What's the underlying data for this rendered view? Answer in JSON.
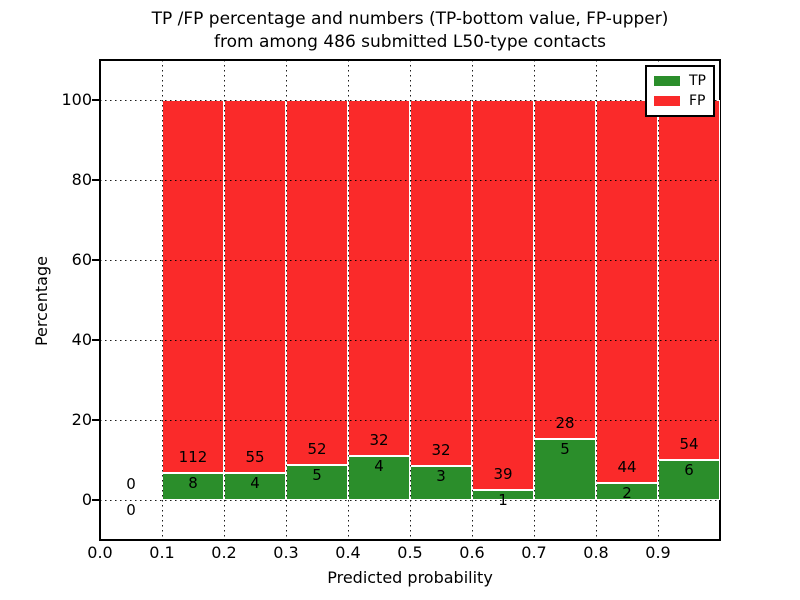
{
  "title": {
    "line1": "TP /FP percentage and numbers (TP-bottom value, FP-upper)",
    "line2": "from among 486 submitted L50-type contacts"
  },
  "axes": {
    "xlabel": "Predicted probability",
    "ylabel": "Percentage",
    "ytick_values": [
      0,
      20,
      40,
      60,
      80,
      100
    ],
    "ytick_labels": [
      "0",
      "20",
      "40",
      "60",
      "80",
      "100"
    ],
    "xtick_values": [
      0.0,
      0.1,
      0.2,
      0.3,
      0.4,
      0.5,
      0.6,
      0.7,
      0.8,
      0.9
    ],
    "xtick_labels": [
      "0.0",
      "0.1",
      "0.2",
      "0.3",
      "0.4",
      "0.5",
      "0.6",
      "0.7",
      "0.8",
      "0.9"
    ],
    "xlim": [
      0.0,
      1.0
    ],
    "ylim": [
      -10,
      110
    ],
    "grid": "dotted black, drawn above bars"
  },
  "legend": {
    "position": "upper right",
    "items": [
      {
        "label": "TP",
        "color": "#2b8e2b"
      },
      {
        "label": "FP",
        "color": "#fa2a2a"
      }
    ]
  },
  "colors": {
    "tp_fill": "#2b8e2b",
    "fp_fill": "#fa2a2a",
    "bar_edge": "#ffffff",
    "frame": "#000000",
    "background": "#ffffff",
    "text": "#000000"
  },
  "chart_data": {
    "type": "bar",
    "stacked": true,
    "orientation": "vertical",
    "title": "TP /FP percentage and numbers (TP-bottom value, FP-upper) from among 486 submitted L50-type contacts",
    "xlabel": "Predicted probability",
    "ylabel": "Percentage",
    "xlim": [
      0.0,
      1.0
    ],
    "ylim": [
      -10,
      110
    ],
    "total_contacts": 486,
    "bin_edges": [
      0.0,
      0.1,
      0.2,
      0.3,
      0.4,
      0.5,
      0.6,
      0.7,
      0.8,
      0.9,
      1.0
    ],
    "series": [
      {
        "name": "TP",
        "color": "#2b8e2b",
        "counts": [
          0,
          8,
          4,
          5,
          4,
          3,
          1,
          5,
          2,
          6
        ]
      },
      {
        "name": "FP",
        "color": "#fa2a2a",
        "counts": [
          0,
          112,
          55,
          52,
          32,
          32,
          39,
          28,
          44,
          54
        ]
      }
    ],
    "tp_percent_per_bin": [
      0,
      6.67,
      6.78,
      8.77,
      11.11,
      8.57,
      2.5,
      15.15,
      4.35,
      10.0
    ],
    "bars_total_percent": 100,
    "note": "Each bin from 0.1 to 1.0 is a stacked bar reaching 100%; numeric labels show raw TP (lower) and FP (upper) counts. Bin 0.0-0.1 is empty (0 / 0)."
  }
}
